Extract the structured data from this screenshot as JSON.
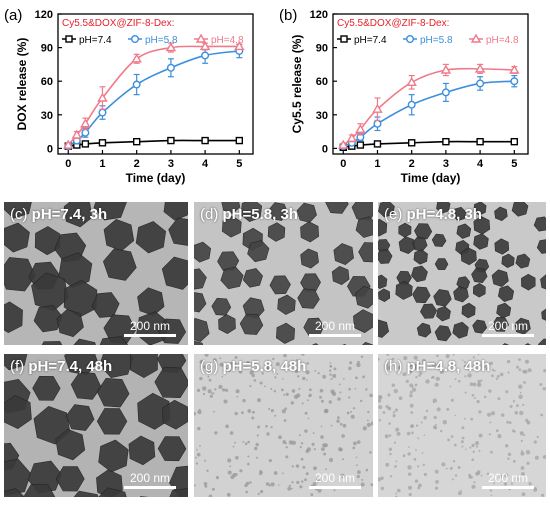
{
  "chart_data": [
    {
      "type": "line",
      "panel_label": "(a)",
      "legend_title": "Cy5.5&DOX@ZIF-8-Dex:",
      "xlabel": "Time (day)",
      "ylabel": "DOX release (%)",
      "xlim": [
        -0.3,
        5.4
      ],
      "ylim": [
        -5,
        120
      ],
      "xticks": [
        0,
        1,
        2,
        3,
        4,
        5
      ],
      "yticks": [
        0,
        30,
        60,
        90,
        120
      ],
      "grid": false,
      "legend_position": "top",
      "series": [
        {
          "name": "pH=7.4",
          "color": "#000000",
          "marker": "square",
          "x": [
            0,
            0.25,
            0.5,
            1,
            2,
            3,
            4,
            5
          ],
          "y": [
            2,
            3,
            4,
            5,
            6,
            7,
            7,
            7
          ],
          "err": [
            1,
            1,
            1,
            1,
            1,
            1,
            1,
            1
          ]
        },
        {
          "name": "pH=5.8",
          "color": "#3d8fdd",
          "marker": "circle",
          "x": [
            0,
            0.25,
            0.5,
            1,
            2,
            3,
            4,
            5
          ],
          "y": [
            2,
            7,
            14,
            32,
            57,
            72,
            83,
            87
          ],
          "err": [
            1,
            3,
            4,
            6,
            9,
            8,
            7,
            6
          ]
        },
        {
          "name": "pH=4.8",
          "color": "#f07a8a",
          "marker": "triangle",
          "x": [
            0,
            0.25,
            0.5,
            1,
            2,
            3,
            4,
            5
          ],
          "y": [
            3,
            12,
            22,
            45,
            80,
            90,
            91,
            91
          ],
          "err": [
            1,
            3,
            5,
            10,
            4,
            4,
            3,
            2
          ]
        }
      ]
    },
    {
      "type": "line",
      "panel_label": "(b)",
      "legend_title": "Cy5.5&DOX@ZIF-8-Dex:",
      "xlabel": "Time (day)",
      "ylabel": "Cy5.5 release (%)",
      "xlim": [
        -0.3,
        5.4
      ],
      "ylim": [
        -5,
        120
      ],
      "xticks": [
        0,
        1,
        2,
        3,
        4,
        5
      ],
      "yticks": [
        0,
        30,
        60,
        90,
        120
      ],
      "grid": false,
      "legend_position": "top",
      "series": [
        {
          "name": "pH=7.4",
          "color": "#000000",
          "marker": "square",
          "x": [
            0,
            0.25,
            0.5,
            1,
            2,
            3,
            4,
            5
          ],
          "y": [
            1,
            2,
            3,
            4,
            5,
            6,
            6,
            6
          ],
          "err": [
            1,
            1,
            1,
            1,
            1,
            1,
            1,
            1
          ]
        },
        {
          "name": "pH=5.8",
          "color": "#3d8fdd",
          "marker": "circle",
          "x": [
            0,
            0.25,
            0.5,
            1,
            2,
            3,
            4,
            5
          ],
          "y": [
            2,
            5,
            10,
            22,
            39,
            50,
            58,
            60
          ],
          "err": [
            1,
            2,
            3,
            6,
            9,
            8,
            6,
            5
          ]
        },
        {
          "name": "pH=4.8",
          "color": "#f07a8a",
          "marker": "triangle",
          "x": [
            0,
            0.25,
            0.5,
            1,
            2,
            3,
            4,
            5
          ],
          "y": [
            3,
            9,
            17,
            35,
            59,
            70,
            71,
            70
          ],
          "err": [
            1,
            3,
            5,
            10,
            6,
            5,
            4,
            3
          ]
        }
      ]
    }
  ],
  "tem_images": [
    {
      "letter": "(c)",
      "label": "pH=7.4, 3h",
      "scale": "200 nm",
      "bg": "#b6b6b6",
      "particle_color": "#3a3a3a",
      "morphology": "large-dense"
    },
    {
      "letter": "(d)",
      "label": "pH=5.8, 3h",
      "scale": "200 nm",
      "bg": "#c4c4c4",
      "particle_color": "#444444",
      "morphology": "medium"
    },
    {
      "letter": "(e)",
      "label": "pH=4.8, 3h",
      "scale": "200 nm",
      "bg": "#c9c9c9",
      "particle_color": "#3c3c3c",
      "morphology": "small"
    },
    {
      "letter": "(f)",
      "label": "pH=7.4, 48h",
      "scale": "200 nm",
      "bg": "#b3b3b3",
      "particle_color": "#3a3a3a",
      "morphology": "large-dense"
    },
    {
      "letter": "(g)",
      "label": "pH=5.8, 48h",
      "scale": "200 nm",
      "bg": "#d2d2d2",
      "particle_color": "#9a9a9a",
      "morphology": "dots"
    },
    {
      "letter": "(h)",
      "label": "pH=4.8, 48h",
      "scale": "200 nm",
      "bg": "#d6d6d6",
      "particle_color": "#a6a6a6",
      "morphology": "dots"
    }
  ]
}
